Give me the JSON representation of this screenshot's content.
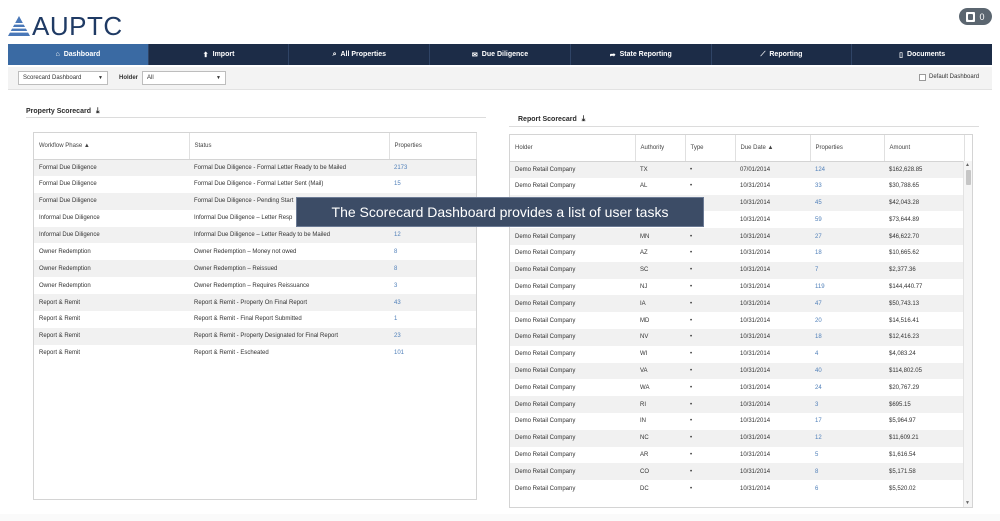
{
  "app": {
    "logo_text": "AUPTC",
    "cc_count": "0"
  },
  "nav": [
    {
      "label": "Dashboard",
      "icon": "home-icon",
      "glyph": "⌂",
      "active": true
    },
    {
      "label": "Import",
      "icon": "upload-icon",
      "glyph": "⬆"
    },
    {
      "label": "All Properties",
      "icon": "search-icon",
      "glyph": "⌕"
    },
    {
      "label": "Due Diligence",
      "icon": "envelope-icon",
      "glyph": "✉"
    },
    {
      "label": "State Reporting",
      "icon": "share-icon",
      "glyph": "➦"
    },
    {
      "label": "Reporting",
      "icon": "line-chart-icon",
      "glyph": "⟋"
    },
    {
      "label": "Documents",
      "icon": "document-icon",
      "glyph": "▯"
    }
  ],
  "toolbar": {
    "dashboard_select": "Scorecard Dashboard",
    "holder_label": "Holder",
    "holder_select": "All",
    "default_dashboard_label": "Default Dashboard"
  },
  "property_scorecard": {
    "title": "Property Scorecard",
    "columns": [
      "Workflow Phase ▲",
      "Status",
      "Properties"
    ],
    "rows": [
      [
        "Formal Due Diligence",
        "Formal Due Diligence - Formal Letter Ready to be Mailed",
        "2173"
      ],
      [
        "Formal Due Diligence",
        "Formal Due Diligence - Formal Letter Sent (Mail)",
        "15"
      ],
      [
        "Formal Due Diligence",
        "Formal Due Diligence - Pending Start",
        ""
      ],
      [
        "Informal Due Diligence",
        "Informal Due Diligence – Letter Resp",
        ""
      ],
      [
        "Informal Due Diligence",
        "Informal Due Diligence – Letter Ready to be Mailed",
        "12"
      ],
      [
        "Owner Redemption",
        "Owner Redemption – Money not owed",
        "8"
      ],
      [
        "Owner Redemption",
        "Owner Redemption – Reissued",
        "8"
      ],
      [
        "Owner Redemption",
        "Owner Redemption – Requires Reissuance",
        "3"
      ],
      [
        "Report & Remit",
        "Report & Remit - Property On Final Report",
        "43"
      ],
      [
        "Report & Remit",
        "Report & Remit - Final Report Submitted",
        "1"
      ],
      [
        "Report & Remit",
        "Report & Remit - Property Designated for Final Report",
        "23"
      ],
      [
        "Report & Remit",
        "Report & Remit - Escheated",
        "101"
      ]
    ]
  },
  "report_scorecard": {
    "title": "Report Scorecard",
    "columns": [
      "Holder",
      "Authority",
      "Type",
      "Due Date ▲",
      "Properties",
      "Amount"
    ],
    "rows": [
      [
        "Demo Retail Company",
        "TX",
        "•",
        "07/01/2014",
        "124",
        "$162,628.85"
      ],
      [
        "Demo Retail Company",
        "AL",
        "•",
        "10/31/2014",
        "33",
        "$30,788.65"
      ],
      [
        "Demo Retail Company",
        "",
        "•",
        "10/31/2014",
        "45",
        "$42,043.28"
      ],
      [
        "Demo Retail Company",
        "",
        "•",
        "10/31/2014",
        "59",
        "$73,644.89"
      ],
      [
        "Demo Retail Company",
        "MN",
        "•",
        "10/31/2014",
        "27",
        "$46,622.70"
      ],
      [
        "Demo Retail Company",
        "AZ",
        "•",
        "10/31/2014",
        "18",
        "$10,665.62"
      ],
      [
        "Demo Retail Company",
        "SC",
        "•",
        "10/31/2014",
        "7",
        "$2,377.36"
      ],
      [
        "Demo Retail Company",
        "NJ",
        "•",
        "10/31/2014",
        "119",
        "$144,440.77"
      ],
      [
        "Demo Retail Company",
        "IA",
        "•",
        "10/31/2014",
        "47",
        "$50,743.13"
      ],
      [
        "Demo Retail Company",
        "MD",
        "•",
        "10/31/2014",
        "20",
        "$14,516.41"
      ],
      [
        "Demo Retail Company",
        "NV",
        "•",
        "10/31/2014",
        "18",
        "$12,416.23"
      ],
      [
        "Demo Retail Company",
        "WI",
        "•",
        "10/31/2014",
        "4",
        "$4,083.24"
      ],
      [
        "Demo Retail Company",
        "VA",
        "•",
        "10/31/2014",
        "40",
        "$114,802.05"
      ],
      [
        "Demo Retail Company",
        "WA",
        "•",
        "10/31/2014",
        "24",
        "$20,767.29"
      ],
      [
        "Demo Retail Company",
        "RI",
        "•",
        "10/31/2014",
        "3",
        "$695.15"
      ],
      [
        "Demo Retail Company",
        "IN",
        "•",
        "10/31/2014",
        "17",
        "$5,964.97"
      ],
      [
        "Demo Retail Company",
        "NC",
        "•",
        "10/31/2014",
        "12",
        "$11,609.21"
      ],
      [
        "Demo Retail Company",
        "AR",
        "•",
        "10/31/2014",
        "5",
        "$1,616.54"
      ],
      [
        "Demo Retail Company",
        "CO",
        "•",
        "10/31/2014",
        "8",
        "$5,171.58"
      ],
      [
        "Demo Retail Company",
        "DC",
        "•",
        "10/31/2014",
        "6",
        "$5,520.02"
      ]
    ]
  },
  "tooltip": "The Scorecard Dashboard provides a list of user tasks",
  "colors": {
    "nav_bg": "#1c2c47",
    "nav_active": "#3a6aa3",
    "link": "#4f7fb9",
    "logo": "#1f3a64"
  }
}
